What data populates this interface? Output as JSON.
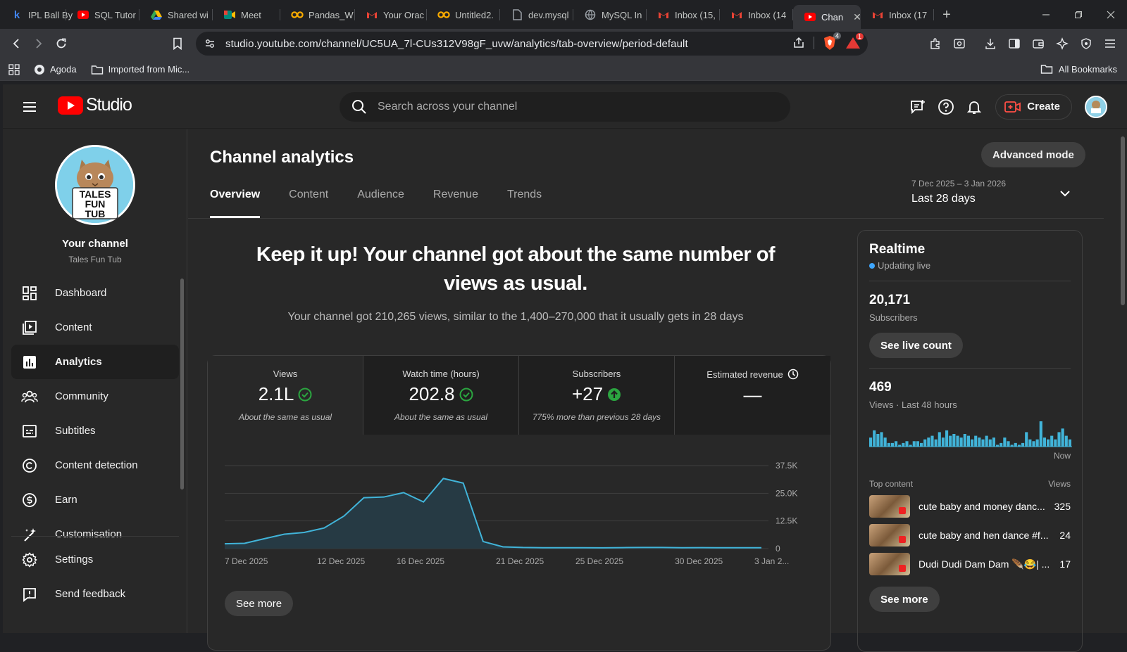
{
  "browser": {
    "tabs": [
      {
        "title": "IPL Ball By",
        "icon": "k",
        "color": "#4285f4"
      },
      {
        "title": "SQL Tutor",
        "icon": "yt",
        "color": "#ff0000"
      },
      {
        "title": "Shared wi",
        "icon": "drive",
        "color": "#34a853"
      },
      {
        "title": "Meet",
        "icon": "meet",
        "color": "#ea4335"
      },
      {
        "title": "Pandas_W",
        "icon": "co",
        "color": "#f9ab00"
      },
      {
        "title": "Your Orac",
        "icon": "gmail",
        "color": "#ea4335"
      },
      {
        "title": "Untitled2.",
        "icon": "co",
        "color": "#f9ab00"
      },
      {
        "title": "dev.mysql",
        "icon": "doc",
        "color": "#9aa0a6"
      },
      {
        "title": "MySQL In",
        "icon": "globe",
        "color": "#9aa0a6"
      },
      {
        "title": "Inbox (15,",
        "icon": "gmail",
        "color": "#ea4335"
      },
      {
        "title": "Inbox (14",
        "icon": "gmail",
        "color": "#ea4335"
      },
      {
        "title": "Chan",
        "icon": "yt",
        "color": "#ff0000",
        "active": true
      },
      {
        "title": "Inbox (17",
        "icon": "gmail",
        "color": "#ea4335"
      }
    ],
    "url": "studio.youtube.com/channel/UC5UA_7l-CUs312V98gF_uvw/analytics/tab-overview/period-default",
    "bookmarks": [
      "Agoda",
      "Imported from Mic..."
    ],
    "all_bookmarks": "All Bookmarks",
    "badge_brave": "4",
    "badge_alert": "1"
  },
  "studio": {
    "logo_text": "Studio",
    "search_placeholder": "Search across your channel",
    "create_label": "Create",
    "channel": {
      "title": "Your channel",
      "name": "Tales Fun Tub",
      "avatar_text": [
        "TALES",
        "FUN",
        "TUB"
      ]
    },
    "nav": [
      {
        "label": "Dashboard",
        "icon": "dashboard-icon"
      },
      {
        "label": "Content",
        "icon": "content-icon"
      },
      {
        "label": "Analytics",
        "icon": "analytics-icon",
        "active": true
      },
      {
        "label": "Community",
        "icon": "community-icon"
      },
      {
        "label": "Subtitles",
        "icon": "subtitles-icon"
      },
      {
        "label": "Content detection",
        "icon": "copyright-icon"
      },
      {
        "label": "Earn",
        "icon": "earn-icon"
      },
      {
        "label": "Customisation",
        "icon": "customisation-icon"
      }
    ],
    "nav_bottom": [
      {
        "label": "Settings",
        "icon": "gear-icon"
      },
      {
        "label": "Send feedback",
        "icon": "feedback-icon"
      }
    ]
  },
  "analytics": {
    "page_title": "Channel analytics",
    "advanced_mode": "Advanced mode",
    "tabs": [
      "Overview",
      "Content",
      "Audience",
      "Revenue",
      "Trends"
    ],
    "active_tab": "Overview",
    "period_range": "7 Dec 2025 – 3 Jan 2026",
    "period_label": "Last 28 days",
    "headline": "Keep it up! Your channel got about the same number of views as usual.",
    "subline": "Your channel got 210,265 views, similar to the 1,400–270,000 that it usually gets in 28 days",
    "metrics": [
      {
        "label": "Views",
        "value": "2.1L",
        "status": "check",
        "note": "About the same as usual"
      },
      {
        "label": "Watch time (hours)",
        "value": "202.8",
        "status": "check",
        "note": "About the same as usual"
      },
      {
        "label": "Subscribers",
        "value": "+27",
        "status": "up",
        "note": "775% more than previous 28 days"
      },
      {
        "label": "Estimated revenue",
        "value": "—",
        "status": "clock",
        "note": ""
      }
    ],
    "see_more": "See more"
  },
  "chart_data": {
    "type": "area",
    "x_tick_labels": [
      "7 Dec 2025",
      "12 Dec 2025",
      "16 Dec 2025",
      "21 Dec 2025",
      "25 Dec 2025",
      "30 Dec 2025",
      "3 Jan 2..."
    ],
    "x_tick_days": [
      0,
      5,
      9,
      14,
      18,
      23,
      27
    ],
    "y_tick_labels": [
      "37.5K",
      "25.0K",
      "12.5K",
      "0"
    ],
    "y_ticks": [
      37500,
      25000,
      12500,
      0
    ],
    "ylim": [
      0,
      37500
    ],
    "grid": true,
    "series": [
      {
        "color": "#41b4d9",
        "values": [
          2200,
          2400,
          4500,
          6500,
          7300,
          9300,
          14700,
          23000,
          23300,
          25300,
          21100,
          31700,
          29600,
          3200,
          800,
          500,
          400,
          400,
          400,
          350,
          450,
          500,
          500,
          400,
          450,
          400,
          400,
          400
        ]
      }
    ]
  },
  "realtime": {
    "title": "Realtime",
    "live": "Updating live",
    "subscribers": "20,171",
    "subscribers_label": "Subscribers",
    "see_live_count": "See live count",
    "views": "469",
    "views_label": "Views · Last 48 hours",
    "now_label": "Now",
    "bars": [
      5,
      9,
      7,
      8,
      5,
      2,
      2,
      3,
      1,
      2,
      3,
      1,
      3,
      3,
      2,
      4,
      5,
      6,
      4,
      8,
      5,
      9,
      6,
      7,
      6,
      5,
      7,
      6,
      4,
      6,
      5,
      4,
      6,
      4,
      5,
      1,
      2,
      5,
      3,
      1,
      2,
      1,
      2,
      8,
      4,
      3,
      4,
      14,
      5,
      4,
      6,
      4,
      8,
      10,
      6,
      4
    ],
    "top_content_label": "Top content",
    "views_col_label": "Views",
    "top_content": [
      {
        "title": "cute baby and money danc...",
        "views": "325"
      },
      {
        "title": "cute baby and hen dance #f...",
        "views": "24"
      },
      {
        "title": "Dudi Dudi Dam Dam 🪶😂| ...",
        "views": "17"
      }
    ],
    "see_more": "See more"
  }
}
